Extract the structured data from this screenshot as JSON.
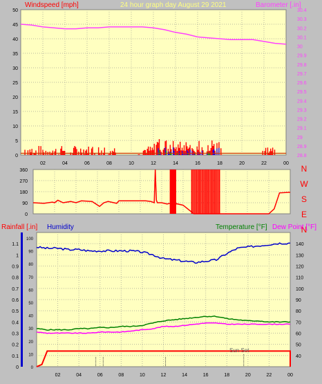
{
  "colors": {
    "background": "#c0c0c0",
    "plot_bg": "#ffffc0",
    "grid": "#b8b8a0",
    "wind_speed": "#ff0000",
    "wind_gust": "#0000ff",
    "wind_avg": "#00a000",
    "barometer": "#ff40ff",
    "wind_dir": "#ff0000",
    "rain": "#ff0000",
    "humidity": "#0000cc",
    "temperature": "#008000",
    "dew_point": "#ff00ff"
  },
  "chart_data": [
    {
      "type": "line",
      "name": "wind-barometer",
      "title": "24 hour graph day   August 29 2021",
      "ylabel_left": "Windspeed [mph]",
      "ylabel_right": "Barometer [.in]",
      "ylim_left": [
        0,
        50
      ],
      "ylim_right": [
        28.8,
        30.4
      ],
      "yticks_left": [
        "0",
        "5",
        "10",
        "15",
        "20",
        "25",
        "30",
        "35",
        "40",
        "45",
        "50"
      ],
      "yticks_right": [
        "28.8",
        "28.9",
        "29",
        "29.1",
        "29.2",
        "29.3",
        "29.4",
        "29.5",
        "29.6",
        "29.7",
        "29.8",
        "29.9",
        "30",
        "30.1",
        "30.2",
        "30.3",
        "30.4"
      ],
      "xticks": [
        "02",
        "04",
        "06",
        "08",
        "10",
        "12",
        "14",
        "16",
        "18",
        "20",
        "22",
        "00"
      ],
      "xlim": [
        0,
        24
      ],
      "series": [
        {
          "name": "Barometer [.in]",
          "axis": "right",
          "x": [
            0,
            1,
            2,
            3,
            4,
            5,
            6,
            7,
            8,
            9,
            10,
            11,
            12,
            13,
            14,
            15,
            16,
            17,
            18,
            19,
            20,
            21,
            22,
            23,
            24
          ],
          "values": [
            30.24,
            30.23,
            30.21,
            30.2,
            30.19,
            30.19,
            30.2,
            30.2,
            30.21,
            30.21,
            30.21,
            30.21,
            30.2,
            30.18,
            30.15,
            30.13,
            30.1,
            30.09,
            30.08,
            30.07,
            30.07,
            30.07,
            30.05,
            30.03,
            30.02
          ]
        }
      ]
    },
    {
      "type": "line",
      "name": "wind-direction",
      "ylim": [
        0,
        360
      ],
      "yticks": [
        "0",
        "90",
        "180",
        "270",
        "360"
      ],
      "compass": [
        "N",
        "W",
        "S",
        "E",
        "N"
      ],
      "xlim": [
        0,
        24
      ],
      "series": [
        {
          "name": "Wind direction",
          "x": [
            0,
            1.0,
            1.8,
            2.0,
            2.3,
            2.8,
            3.5,
            4.0,
            4.5,
            5.5,
            6.2,
            6.6,
            7.0,
            7.8,
            8.0,
            9.5,
            10.5,
            11.0,
            11.3,
            11.4,
            11.5,
            11.6,
            12.0,
            12.5,
            13.0,
            14.0,
            15.0,
            15.3,
            16.0,
            17.0,
            18.0,
            18.3,
            19.0,
            20.0,
            21.0,
            22.0,
            22.5,
            23.0,
            24.0
          ],
          "values": [
            90,
            85,
            95,
            90,
            110,
            90,
            100,
            90,
            105,
            100,
            60,
            90,
            100,
            85,
            105,
            105,
            105,
            100,
            90,
            360,
            110,
            90,
            90,
            80,
            90,
            70,
            0,
            0,
            0,
            0,
            0,
            0,
            0,
            0,
            0,
            0,
            40,
            170,
            175
          ]
        }
      ]
    },
    {
      "type": "line",
      "name": "rain-humidity-temperature",
      "ylabel_left": "Rainfall [.in]",
      "ylabel_left2": "Humidity",
      "ylabel_right": "Temperature [°F]",
      "ylabel_right2": "Dew Point [°F]",
      "annotation": "Sun Set",
      "ylim_left": [
        0,
        1.2
      ],
      "ylim_right": [
        30,
        150
      ],
      "yticks_left": [
        "0",
        "0.1",
        "0.2",
        "0.3",
        "0.4",
        "0.5",
        "0.6",
        "0.7",
        "0.8",
        "0.9",
        "1",
        "1.1"
      ],
      "humidity_ticks": [
        "0",
        "10",
        "20",
        "30",
        "40",
        "50",
        "60",
        "70",
        "80",
        "90",
        "100"
      ],
      "yticks_right": [
        "40",
        "50",
        "60",
        "70",
        "80",
        "90",
        "100",
        "110",
        "120",
        "130",
        "140"
      ],
      "xticks": [
        "02",
        "04",
        "06",
        "08",
        "10",
        "12",
        "14",
        "16",
        "18",
        "20",
        "22",
        "00"
      ],
      "xlim": [
        0,
        24
      ],
      "series": [
        {
          "name": "Humidity",
          "x": [
            0,
            1,
            2,
            3,
            4,
            5,
            6,
            7,
            8,
            9,
            10,
            11,
            12,
            13,
            14,
            15,
            16,
            17,
            18,
            19,
            20,
            21,
            22,
            23,
            24
          ],
          "values": [
            93,
            92,
            92,
            91,
            91,
            90,
            90,
            90,
            90,
            90,
            89,
            87,
            84,
            83,
            82,
            81,
            82,
            83,
            88,
            92,
            93,
            94,
            95,
            96,
            96
          ]
        },
        {
          "name": "Temperature [°F]",
          "x": [
            0,
            1,
            2,
            3,
            4,
            5,
            6,
            7,
            8,
            9,
            10,
            11,
            12,
            13,
            14,
            15,
            16,
            17,
            18,
            19,
            20,
            21,
            22,
            23,
            24
          ],
          "values": [
            64,
            63,
            63,
            63,
            64,
            64,
            65,
            65,
            66,
            66,
            67,
            69,
            71,
            72,
            73,
            74,
            75,
            75,
            73,
            72,
            71,
            71,
            70,
            70,
            70
          ]
        },
        {
          "name": "Dew Point [°F]",
          "x": [
            0,
            1,
            2,
            3,
            4,
            5,
            6,
            7,
            8,
            9,
            10,
            11,
            12,
            13,
            14,
            15,
            16,
            17,
            18,
            19,
            20,
            21,
            22,
            23,
            24
          ],
          "values": [
            61,
            60,
            60,
            60,
            60,
            60,
            61,
            61,
            61,
            62,
            63,
            64,
            66,
            66,
            67,
            68,
            69,
            69,
            68,
            68,
            68,
            68,
            68,
            68,
            68
          ]
        },
        {
          "name": "Rainfall [.in]",
          "x": [
            0,
            0.5,
            1.0,
            24.0
          ],
          "values": [
            0.0,
            0.02,
            0.14,
            0.14
          ]
        }
      ]
    }
  ]
}
